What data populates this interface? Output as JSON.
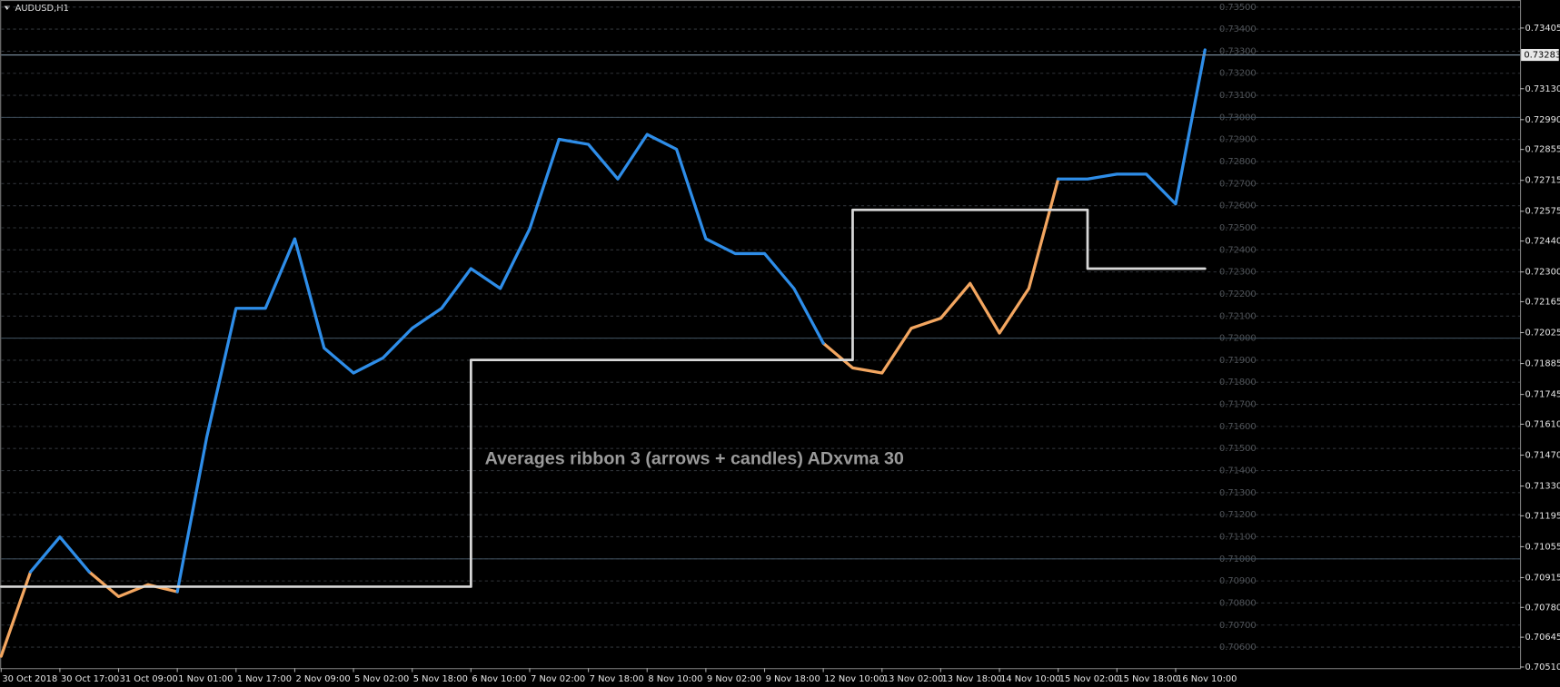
{
  "chart_data": {
    "type": "line",
    "title": "AUDUSD,H1",
    "annotation": "Averages ribbon 3 (arrows + candles) ADxvma 30",
    "categories": [
      "30 Oct 2018",
      null,
      "30 Oct 17:00",
      null,
      "31 Oct 09:00",
      null,
      "1 Nov 01:00",
      null,
      "1 Nov 17:00",
      null,
      "2 Nov 09:00",
      null,
      "5 Nov 02:00",
      null,
      "5 Nov 18:00",
      null,
      "6 Nov 10:00",
      null,
      "7 Nov 02:00",
      null,
      "7 Nov 18:00",
      null,
      "8 Nov 10:00",
      null,
      "9 Nov 02:00",
      null,
      "9 Nov 18:00",
      null,
      "12 Nov 10:00",
      null,
      "13 Nov 02:00",
      null,
      "13 Nov 18:00",
      null,
      "14 Nov 10:00",
      null,
      "15 Nov 02:00",
      null,
      "15 Nov 18:00",
      null,
      "16 Nov 10:00",
      null
    ],
    "series": [
      {
        "color": "#f3a660",
        "values": [
          0.70559,
          0.70941,
          null,
          0.70941,
          0.70829,
          0.70883,
          0.70851,
          null,
          null,
          null,
          null,
          null,
          null,
          null,
          null,
          null,
          null,
          null,
          null,
          null,
          null,
          null,
          null,
          null,
          null,
          null,
          null,
          null,
          0.71977,
          0.71865,
          0.71842,
          0.72045,
          0.7209,
          0.72248,
          0.72023,
          0.72225,
          0.72721,
          null,
          null,
          null,
          null,
          null
        ]
      },
      {
        "color": "#2e8de8",
        "values": [
          null,
          0.70941,
          0.71099,
          0.70941,
          null,
          null,
          0.70851,
          0.7155,
          0.72135,
          0.72135,
          0.7245,
          0.71955,
          0.71842,
          0.7191,
          0.72045,
          0.72135,
          0.72315,
          0.72225,
          0.72495,
          0.72901,
          0.72878,
          0.72721,
          0.72923,
          0.72856,
          0.7245,
          0.72383,
          0.72383,
          0.72225,
          0.71977,
          null,
          null,
          null,
          null,
          null,
          null,
          null,
          0.72721,
          0.72721,
          0.72743,
          0.72743,
          0.72608,
          0.73306
        ]
      },
      {
        "color": "#d8d8d8",
        "step": true,
        "values": [
          0.70874,
          0.70874,
          0.70874,
          0.70874,
          0.70874,
          0.70874,
          0.70874,
          0.70874,
          0.70874,
          0.70874,
          0.70874,
          0.70874,
          0.70874,
          0.70874,
          0.70874,
          0.70874,
          0.71901,
          0.71901,
          0.71901,
          0.71901,
          0.71901,
          0.71901,
          0.71901,
          0.71901,
          0.71901,
          0.71901,
          0.71901,
          0.71901,
          0.71901,
          0.72581,
          0.72581,
          0.72581,
          0.72581,
          0.72581,
          0.72581,
          0.72581,
          0.72581,
          0.72315,
          0.72315,
          0.72315,
          0.72315,
          0.72315
        ]
      }
    ],
    "ylim": [
      0.70505,
      0.73532
    ],
    "yticks": [
      {
        "value": 0.73405,
        "label": "0.73405"
      },
      {
        "value": 0.7313,
        "label": "0.73130"
      },
      {
        "value": 0.7299,
        "label": "0.72990"
      },
      {
        "value": 0.72855,
        "label": "0.72855"
      },
      {
        "value": 0.72715,
        "label": "0.72715"
      },
      {
        "value": 0.72575,
        "label": "0.72575"
      },
      {
        "value": 0.7244,
        "label": "0.72440"
      },
      {
        "value": 0.723,
        "label": "0.72300"
      },
      {
        "value": 0.72165,
        "label": "0.72165"
      },
      {
        "value": 0.72025,
        "label": "0.72025"
      },
      {
        "value": 0.71885,
        "label": "0.71885"
      },
      {
        "value": 0.71745,
        "label": "0.71745"
      },
      {
        "value": 0.7161,
        "label": "0.71610"
      },
      {
        "value": 0.7147,
        "label": "0.71470"
      },
      {
        "value": 0.7133,
        "label": "0.71330"
      },
      {
        "value": 0.71195,
        "label": "0.71195"
      },
      {
        "value": 0.71055,
        "label": "0.71055"
      },
      {
        "value": 0.70915,
        "label": "0.70915"
      },
      {
        "value": 0.7078,
        "label": "0.70780"
      },
      {
        "value": 0.70645,
        "label": "0.70645"
      },
      {
        "value": 0.7051,
        "label": "0.70510"
      }
    ],
    "grid_ticks": [
      {
        "value": 0.735,
        "label": "0.73500"
      },
      {
        "value": 0.734,
        "label": "0.73400"
      },
      {
        "value": 0.733,
        "label": "0.73300"
      },
      {
        "value": 0.732,
        "label": "0.73200"
      },
      {
        "value": 0.731,
        "label": "0.73100"
      },
      {
        "value": 0.73,
        "label": "0.73000"
      },
      {
        "value": 0.729,
        "label": "0.72900"
      },
      {
        "value": 0.728,
        "label": "0.72800"
      },
      {
        "value": 0.727,
        "label": "0.72700"
      },
      {
        "value": 0.726,
        "label": "0.72600"
      },
      {
        "value": 0.725,
        "label": "0.72500"
      },
      {
        "value": 0.724,
        "label": "0.72400"
      },
      {
        "value": 0.723,
        "label": "0.72300"
      },
      {
        "value": 0.722,
        "label": "0.72200"
      },
      {
        "value": 0.721,
        "label": "0.72100"
      },
      {
        "value": 0.72,
        "label": "0.72000"
      },
      {
        "value": 0.719,
        "label": "0.71900"
      },
      {
        "value": 0.718,
        "label": "0.71800"
      },
      {
        "value": 0.717,
        "label": "0.71700"
      },
      {
        "value": 0.716,
        "label": "0.71600"
      },
      {
        "value": 0.715,
        "label": "0.71500"
      },
      {
        "value": 0.714,
        "label": "0.71400"
      },
      {
        "value": 0.713,
        "label": "0.71300"
      },
      {
        "value": 0.712,
        "label": "0.71200"
      },
      {
        "value": 0.711,
        "label": "0.71100"
      },
      {
        "value": 0.71,
        "label": "0.71000"
      },
      {
        "value": 0.709,
        "label": "0.70900"
      },
      {
        "value": 0.708,
        "label": "0.70800"
      },
      {
        "value": 0.707,
        "label": "0.70700"
      },
      {
        "value": 0.706,
        "label": "0.70600"
      }
    ],
    "level_lines": [
      0.73,
      0.72,
      0.71
    ],
    "last_price": {
      "value": 0.73283,
      "label": "0.73283"
    },
    "grid": true
  }
}
